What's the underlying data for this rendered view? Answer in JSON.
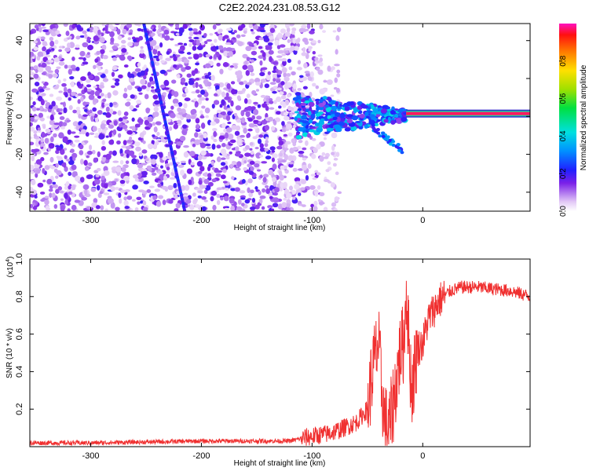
{
  "title": "C2E2.2024.231.08.53.G12",
  "chart_data": [
    {
      "type": "heatmap",
      "xlabel": "Height of straight line (km)",
      "ylabel": "Frequency (Hz)",
      "xlim": [
        -355,
        97
      ],
      "ylim": [
        -50,
        49
      ],
      "x_ticks": [
        -300,
        -200,
        -100,
        0
      ],
      "x_tick_labels": [
        "-300",
        "-200",
        "-100",
        "0"
      ],
      "y_ticks": [
        -40,
        -20,
        0,
        20,
        40
      ],
      "y_tick_labels": [
        "-40",
        "-20",
        "0",
        "20",
        "40"
      ],
      "colorbar": {
        "label": "Normalized spectral amplitude",
        "range": [
          0,
          1
        ],
        "ticks": [
          0.0,
          0.2,
          0.4,
          0.6,
          0.8
        ],
        "tick_labels": [
          "0.0",
          "0.2",
          "0.4",
          "0.6",
          "0.8"
        ]
      },
      "features": {
        "carrier_line": {
          "frequency_hz": 1.5,
          "x_start_km": -15,
          "x_end_km": 97,
          "amplitude": 0.95
        },
        "diagonal_streak": {
          "x_start_km": -252,
          "y_start_hz": 49,
          "x_end_km": -215,
          "y_end_hz": -50,
          "amplitude": 0.35
        },
        "noise_region_x_km": [
          -355,
          -85
        ],
        "transition_region_x_km": [
          -115,
          -10
        ]
      }
    },
    {
      "type": "line",
      "xlabel": "Height of straight line (km)",
      "ylabel": "SNR (10 * v/v)",
      "y_multiplier": "(x10",
      "y_multiplier_exp": "4",
      "y_multiplier_close": ")",
      "xlim": [
        -355,
        97
      ],
      "ylim": [
        0,
        1.0
      ],
      "x_ticks": [
        -300,
        -200,
        -100,
        0
      ],
      "x_tick_labels": [
        "-300",
        "-200",
        "-100",
        "0"
      ],
      "y_ticks": [
        0.2,
        0.4,
        0.6,
        0.8,
        1.0
      ],
      "y_tick_labels": [
        "0.2",
        "0.4",
        "0.6",
        "0.8",
        "1.0"
      ],
      "line_color": "#f03030",
      "series": [
        {
          "x": [
            -355,
            -300,
            -250,
            -200,
            -150,
            -120,
            -105,
            -95,
            -85,
            -75,
            -60,
            -50,
            -45,
            -40,
            -37,
            -34,
            -30,
            -25,
            -20,
            -17,
            -15,
            -12,
            -10,
            -5,
            0,
            5,
            15,
            25,
            35,
            50,
            65,
            80,
            97
          ],
          "y": [
            0.02,
            0.02,
            0.025,
            0.03,
            0.03,
            0.03,
            0.05,
            0.06,
            0.07,
            0.09,
            0.13,
            0.2,
            0.42,
            0.55,
            0.3,
            0.12,
            0.1,
            0.3,
            0.52,
            0.55,
            0.85,
            0.5,
            0.3,
            0.52,
            0.55,
            0.68,
            0.78,
            0.83,
            0.85,
            0.85,
            0.84,
            0.83,
            0.8
          ]
        }
      ]
    }
  ]
}
